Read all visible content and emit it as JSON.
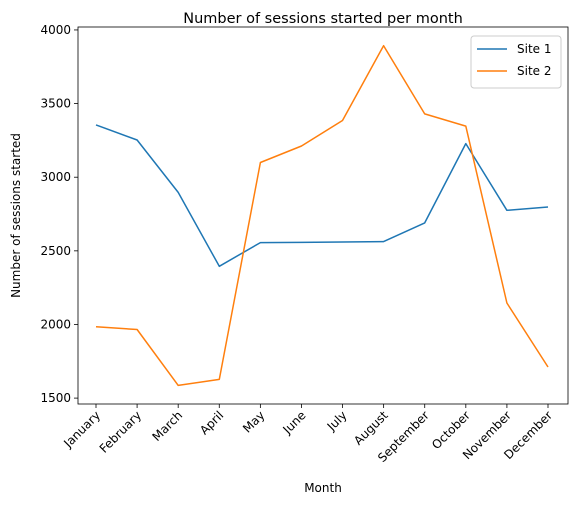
{
  "chart_data": {
    "type": "line",
    "title": "Number of sessions started per month",
    "xlabel": "Month",
    "ylabel": "Number of sessions started",
    "categories": [
      "January",
      "February",
      "March",
      "April",
      "May",
      "June",
      "July",
      "August",
      "September",
      "October",
      "November",
      "December"
    ],
    "ylim": [
      1460,
      4020
    ],
    "yticks": [
      1500,
      2000,
      2500,
      3000,
      3500,
      4000
    ],
    "grid": false,
    "legend_position": "top-right",
    "series": [
      {
        "name": "Site 1",
        "color": "#1f77b4",
        "values": [
          3355,
          3253,
          2897,
          2395,
          2556,
          2557,
          2560,
          2563,
          2690,
          3228,
          2775,
          2798
        ]
      },
      {
        "name": "Site 2",
        "color": "#ff7f0e",
        "values": [
          1984,
          1966,
          1586,
          1627,
          3100,
          3212,
          3385,
          3893,
          3430,
          3347,
          2146,
          1711
        ]
      }
    ]
  }
}
